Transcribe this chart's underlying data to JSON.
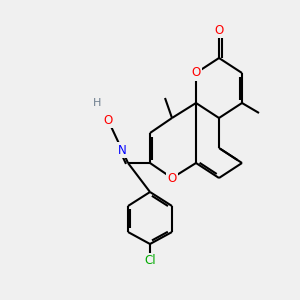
{
  "bg_color": "#f0f0f0",
  "bond_color": "#000000",
  "bond_lw": 1.5,
  "atom_colors": {
    "C": "#000000",
    "N": "#0000ff",
    "O": "#ff0000",
    "Cl": "#00aa00",
    "H": "#708090"
  },
  "font_size": 8.5
}
